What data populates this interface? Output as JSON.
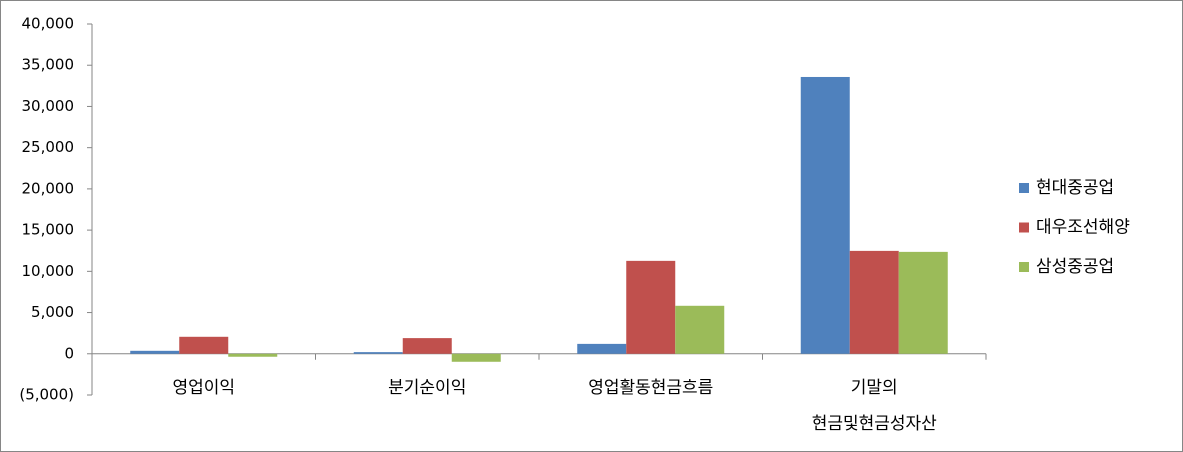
{
  "chart_data": {
    "type": "bar",
    "categories": [
      "영업이익",
      "분기순이익",
      "영업활동현금흐름",
      "기말의\n현금및현금성자산"
    ],
    "series": [
      {
        "name": "현대중공업",
        "color": "#4f81bd",
        "values": [
          360,
          200,
          1200,
          33575
        ]
      },
      {
        "name": "대우조선해양",
        "color": "#c0504d",
        "values": [
          2060,
          1900,
          11270,
          12480
        ]
      },
      {
        "name": "삼성중공업",
        "color": "#9bbb59",
        "values": [
          -360,
          -970,
          5820,
          12360
        ]
      }
    ],
    "ylim": [
      -5000,
      40000
    ],
    "yticks": [
      {
        "value": -5000,
        "label": "(5,000)"
      },
      0,
      {
        "value": 5000,
        "label": "5,000"
      },
      {
        "value": 10000,
        "label": "10,000"
      },
      {
        "value": 15000,
        "label": "15,000"
      },
      {
        "value": 20000,
        "label": "20,000"
      },
      {
        "value": 25000,
        "label": "25,000"
      },
      {
        "value": 30000,
        "label": "30,000"
      },
      {
        "value": 35000,
        "label": "35,000"
      },
      {
        "value": 40000,
        "label": "40,000"
      }
    ],
    "negative_tick_color": "#ff0000",
    "grid": false,
    "legend": "right"
  }
}
